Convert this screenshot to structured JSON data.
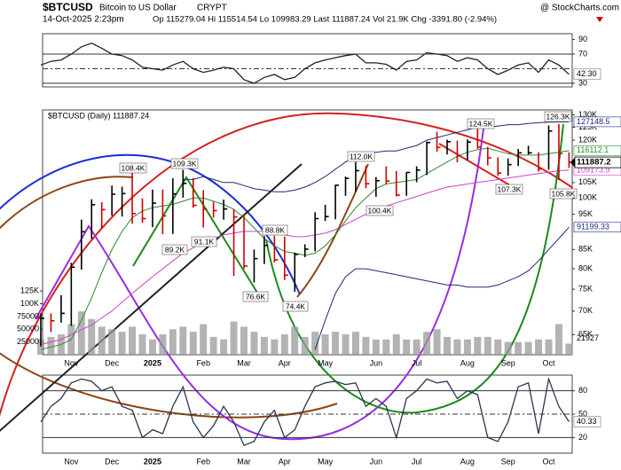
{
  "header": {
    "symbol": "$BTCUSD",
    "name": "Bitcoin to US Dollar",
    "exchange": "CRYPT",
    "source": "@ StockCharts.com",
    "date": "14-Oct-2025 2:23pm",
    "quote": "Op 115279.04  Hi 115514.54 Lo 109983.29 Last 111887.24 Vol 21.9K Chg -3391.80 (-2.94%)"
  },
  "chart_data": [
    {
      "type": "line",
      "color": "#222",
      "values": [
        55,
        60,
        62,
        70,
        80,
        85,
        78,
        70,
        68,
        62,
        52,
        50,
        48,
        55,
        60,
        50,
        45,
        48,
        52,
        50,
        35,
        30,
        38,
        42,
        35,
        38,
        50,
        58,
        62,
        65,
        68,
        70,
        58,
        58,
        56,
        48,
        60,
        62,
        72,
        70,
        68,
        60,
        65,
        62,
        50,
        42,
        48,
        55,
        58,
        45,
        62,
        55,
        42.3
      ],
      "last_label": "42.30",
      "ylim": [
        25,
        98
      ],
      "yticks": [
        90,
        70,
        30
      ],
      "reference_lines": {
        "solid": [
          70,
          30
        ],
        "dashed": [
          50
        ]
      }
    },
    {
      "type": "hlc",
      "title": "$BTCUSD (Daily) 111887.24",
      "log": true,
      "up_color": "#000000",
      "down_color": "#d00000",
      "volume_color": "#9a9a9a",
      "categories": [
        null,
        null,
        null,
        "Nov",
        null,
        null,
        null,
        "Dec",
        null,
        null,
        null,
        "2025",
        null,
        null,
        null,
        null,
        "Feb",
        null,
        null,
        null,
        "Mar",
        null,
        null,
        null,
        "Apr",
        null,
        null,
        null,
        "May",
        null,
        null,
        null,
        null,
        "Jun",
        null,
        null,
        null,
        "Jul",
        null,
        null,
        null,
        null,
        "Aug",
        null,
        null,
        null,
        "Sep",
        null,
        null,
        null,
        "Oct",
        null,
        null
      ],
      "high": [
        69500,
        69500,
        73600,
        81500,
        93400,
        99600,
        98700,
        104000,
        103600,
        108400,
        99900,
        102700,
        102700,
        106400,
        109300,
        106500,
        102500,
        98800,
        99500,
        96500,
        95000,
        85000,
        88700,
        88800,
        88500,
        84200,
        86400,
        95600,
        97900,
        104300,
        107000,
        112000,
        110700,
        106800,
        110500,
        108900,
        108500,
        110500,
        119500,
        123200,
        120200,
        119800,
        120300,
        124500,
        117500,
        113700,
        113300,
        116700,
        117900,
        115500,
        125700,
        126300,
        115514.54
      ],
      "low": [
        62600,
        65500,
        67500,
        66800,
        79800,
        87900,
        90800,
        94600,
        94300,
        92200,
        92500,
        91200,
        89200,
        89300,
        100100,
        97000,
        91100,
        94000,
        93400,
        78200,
        80000,
        76600,
        81200,
        81600,
        77200,
        74400,
        83000,
        84500,
        93000,
        93500,
        100700,
        102000,
        103100,
        100400,
        104500,
        100500,
        100700,
        105100,
        107500,
        115700,
        114700,
        111900,
        112700,
        116800,
        110800,
        107300,
        107300,
        110600,
        114700,
        108700,
        109300,
        105800,
        109983.29
      ],
      "close": [
        68400,
        67900,
        69500,
        80400,
        89900,
        97900,
        96400,
        101200,
        101400,
        95200,
        93700,
        98400,
        94500,
        101300,
        104700,
        97700,
        96500,
        96100,
        96600,
        94200,
        80700,
        82600,
        86100,
        82300,
        78400,
        83700,
        85100,
        93700,
        94300,
        104100,
        106400,
        109000,
        104600,
        105600,
        105500,
        100900,
        108400,
        109200,
        119100,
        117300,
        119400,
        114200,
        119300,
        117400,
        113500,
        108200,
        111100,
        115300,
        115300,
        109600,
        123500,
        115100,
        111887.24
      ],
      "last_label": "111887.2",
      "volume": [
        30000,
        35000,
        40000,
        60000,
        85000,
        70000,
        55000,
        50000,
        45000,
        55000,
        40000,
        30000,
        40000,
        50000,
        55000,
        45000,
        60000,
        35000,
        30000,
        65000,
        55000,
        45000,
        35000,
        30000,
        40000,
        55000,
        35000,
        45000,
        40000,
        45000,
        40000,
        45000,
        35000,
        30000,
        30000,
        40000,
        30000,
        30000,
        45000,
        50000,
        35000,
        30000,
        30000,
        35000,
        35000,
        30000,
        25000,
        25000,
        25000,
        30000,
        30000,
        60000,
        21927
      ],
      "series": [
        {
          "color": "#1c2a78",
          "values": [
            null,
            null,
            null,
            null,
            null,
            null,
            null,
            null,
            null,
            null,
            null,
            null,
            null,
            null,
            106000,
            106000,
            107000,
            106000,
            105000,
            105000,
            104000,
            103000,
            102500,
            102000,
            102000,
            102500,
            103500,
            105000,
            107000,
            109500,
            112000,
            114000,
            115000,
            115500,
            116000,
            116000,
            117000,
            118000,
            120000,
            121000,
            122000,
            123000,
            124000,
            125000,
            125000,
            125500,
            126000,
            126000,
            126500,
            126800,
            127000,
            127100,
            127148.5
          ]
        },
        {
          "color": "#2e8b2e",
          "values": [
            62000,
            62500,
            63000,
            64000,
            68000,
            73000,
            79000,
            85000,
            90000,
            94000,
            96000,
            97000,
            97500,
            98000,
            99000,
            100000,
            100000,
            99000,
            98000,
            96500,
            94000,
            91000,
            88000,
            86000,
            84500,
            84000,
            83500,
            84000,
            86000,
            89000,
            93000,
            97000,
            100000,
            103000,
            104500,
            105000,
            105500,
            106000,
            108000,
            110000,
            112000,
            114000,
            115500,
            116500,
            117000,
            116000,
            115000,
            114500,
            114500,
            114500,
            115000,
            115500,
            116112.1
          ]
        },
        {
          "color": "#d040c8",
          "values": [
            63000,
            63500,
            64000,
            65000,
            66000,
            67000,
            68500,
            70000,
            72000,
            74000,
            76000,
            78000,
            80000,
            82000,
            84000,
            85500,
            87000,
            88000,
            89000,
            89500,
            90000,
            90000,
            90000,
            89500,
            89000,
            88500,
            88500,
            89000,
            89500,
            90500,
            92000,
            93500,
            95000,
            96500,
            97500,
            98500,
            99500,
            100500,
            101500,
            102500,
            103500,
            104000,
            104500,
            105000,
            105500,
            106000,
            106500,
            107000,
            107500,
            108000,
            108500,
            109000,
            109173.9
          ]
        },
        {
          "color": "#1c2a78",
          "values": [
            null,
            null,
            null,
            null,
            null,
            null,
            null,
            null,
            null,
            null,
            null,
            null,
            null,
            null,
            null,
            null,
            null,
            null,
            null,
            null,
            null,
            null,
            null,
            null,
            null,
            null,
            null,
            62000,
            68000,
            74000,
            78000,
            80000,
            80000,
            79500,
            79000,
            78500,
            78000,
            77500,
            77000,
            76500,
            76000,
            76000,
            75500,
            75500,
            75500,
            76000,
            77000,
            78000,
            79500,
            82000,
            85000,
            88000,
            91199.33
          ]
        }
      ],
      "ylim": [
        61000,
        132000
      ],
      "yticks": [
        {
          "value": 130000,
          "label": "130K"
        },
        {
          "value": 125000,
          "label": "125K"
        },
        {
          "value": 120000,
          "label": "120K"
        },
        {
          "value": 105000,
          "label": "105K"
        },
        {
          "value": 100000,
          "label": "100K"
        },
        {
          "value": 95000,
          "label": "95K"
        },
        {
          "value": 85000,
          "label": "85K"
        },
        {
          "value": 80000,
          "label": "80K"
        },
        {
          "value": 75000,
          "label": "75K"
        },
        {
          "value": 70000,
          "label": "70K"
        },
        {
          "value": 65000,
          "label": "65K"
        }
      ],
      "volume_ylim": [
        0,
        480000
      ],
      "volume_yticks": [
        {
          "value": 125000,
          "label": "125K"
        },
        {
          "value": 100000,
          "label": "100K"
        },
        75000,
        50000,
        25000
      ],
      "annotations": [
        "108.4K",
        "109.3K",
        "89.2K",
        "91.1K",
        "88.8K",
        "76.6K",
        "74.4K",
        "112.0K",
        "100.4K",
        "124.5K",
        "107.3K",
        "126.3K",
        "105.8K"
      ]
    },
    {
      "type": "line",
      "color": "#2b3550",
      "values": [
        40,
        60,
        70,
        90,
        95,
        92,
        80,
        85,
        60,
        55,
        20,
        30,
        25,
        60,
        85,
        40,
        20,
        35,
        60,
        40,
        10,
        15,
        40,
        55,
        20,
        30,
        60,
        85,
        90,
        92,
        88,
        90,
        60,
        70,
        60,
        20,
        70,
        80,
        95,
        90,
        92,
        70,
        80,
        75,
        20,
        15,
        40,
        85,
        90,
        25,
        95,
        60,
        40.33
      ],
      "ylim": [
        0,
        100
      ],
      "yticks": [
        80,
        50,
        20
      ],
      "reference_lines": {
        "solid": [
          80,
          20
        ],
        "dashed": [
          50
        ]
      }
    }
  ]
}
